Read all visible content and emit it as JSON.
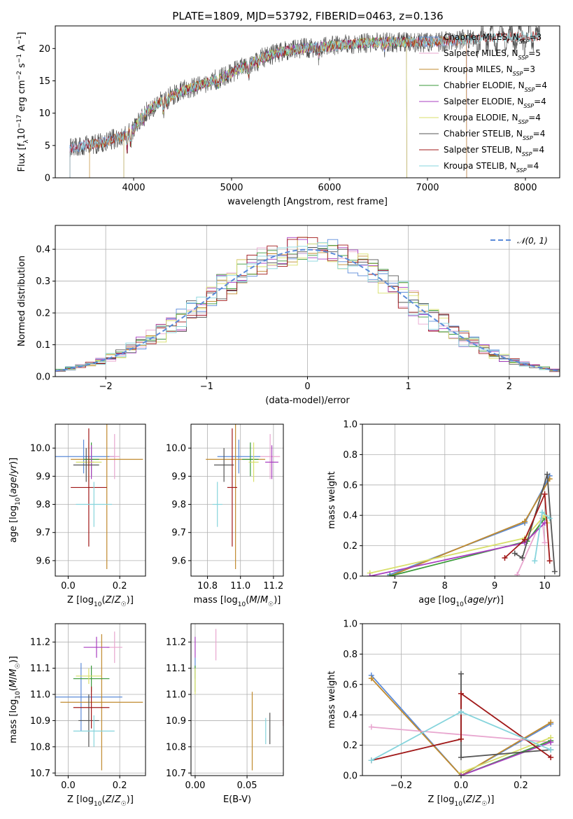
{
  "figure_title": "PLATE=1809, MJD=53792, FIBERID=0463, z=0.136",
  "colors": {
    "Chabrier MILES": "#5b8bd9",
    "Salpeter MILES": "#e8a6cf",
    "Kroupa MILES": "#c08a2e",
    "Chabrier ELODIE": "#3a9a3a",
    "Salpeter ELODIE": "#a93fc0",
    "Kroupa ELODIE": "#d8df6a",
    "Chabrier STELIB": "#555555",
    "Salpeter STELIB": "#a01818",
    "Kroupa STELIB": "#86d4dc",
    "gauss": "#5b8bd9"
  },
  "chart_data": [
    {
      "id": "spectrum",
      "type": "line",
      "xlabel": "wavelength [Angstrom, rest frame]",
      "ylabel": "Flux [f_λ 10^-17 erg cm^-2 s^-1 A^-1]",
      "xlim": [
        3200,
        8350
      ],
      "ylim": [
        0,
        23.5
      ],
      "xticks": [
        4000,
        5000,
        6000,
        7000,
        8000
      ],
      "yticks": [
        0,
        5,
        10,
        15,
        20
      ],
      "grid": false,
      "legend_position": "top-right",
      "legend": [
        {
          "model": "Chabrier MILES",
          "base": "Chabrier MILES, N",
          "n": "3"
        },
        {
          "model": "Salpeter MILES",
          "base": "Salpeter MILES, N",
          "n": "5"
        },
        {
          "model": "Kroupa MILES",
          "base": "Kroupa MILES, N",
          "n": "3"
        },
        {
          "model": "Chabrier ELODIE",
          "base": "Chabrier ELODIE, N",
          "n": "4"
        },
        {
          "model": "Salpeter ELODIE",
          "base": "Salpeter ELODIE, N",
          "n": "4"
        },
        {
          "model": "Kroupa ELODIE",
          "base": "Kroupa ELODIE, N",
          "n": "4"
        },
        {
          "model": "Chabrier STELIB",
          "base": "Chabrier STELIB, N",
          "n": "4"
        },
        {
          "model": "Salpeter STELIB",
          "base": "Salpeter STELIB, N",
          "n": "4"
        },
        {
          "model": "Kroupa STELIB",
          "base": "Kroupa STELIB, N",
          "n": "4"
        }
      ],
      "legend_sub": "SSP",
      "continuum": [
        [
          3350,
          4.5
        ],
        [
          3500,
          5.0
        ],
        [
          3700,
          5.5
        ],
        [
          3900,
          6.5
        ],
        [
          4000,
          7.5
        ],
        [
          4100,
          10.0
        ],
        [
          4300,
          12.0
        ],
        [
          4500,
          13.5
        ],
        [
          4700,
          14.5
        ],
        [
          4900,
          15.5
        ],
        [
          5100,
          17.0
        ],
        [
          5300,
          18.5
        ],
        [
          5500,
          19.5
        ],
        [
          5700,
          20.0
        ],
        [
          5900,
          20.2
        ],
        [
          6100,
          20.5
        ],
        [
          6300,
          20.8
        ],
        [
          6500,
          21.0
        ],
        [
          6700,
          21.0
        ],
        [
          6900,
          21.0
        ],
        [
          7100,
          21.0
        ],
        [
          7300,
          21.3
        ],
        [
          7500,
          21.5
        ],
        [
          7700,
          21.7
        ],
        [
          7900,
          21.8
        ],
        [
          8100,
          21.9
        ]
      ],
      "model_ranges": [
        {
          "model": "Chabrier MILES",
          "xmin": 3350,
          "xmax": 7400
        },
        {
          "model": "Salpeter MILES",
          "xmin": 3350,
          "xmax": 7400
        },
        {
          "model": "Kroupa MILES",
          "xmin": 3550,
          "xmax": 7400
        },
        {
          "model": "Chabrier ELODIE",
          "xmin": 3900,
          "xmax": 6790
        },
        {
          "model": "Salpeter ELODIE",
          "xmin": 3900,
          "xmax": 6790
        },
        {
          "model": "Kroupa ELODIE",
          "xmin": 3900,
          "xmax": 6790
        },
        {
          "model": "Chabrier STELIB",
          "xmin": 3350,
          "xmax": 8150
        },
        {
          "model": "Salpeter STELIB",
          "xmin": 3350,
          "xmax": 8150
        },
        {
          "model": "Kroupa STELIB",
          "xmin": 3350,
          "xmax": 8150
        }
      ]
    },
    {
      "id": "residuals",
      "type": "bar",
      "xlabel": "(data-model)/error",
      "ylabel": "Normed distribution",
      "xlim": [
        -2.5,
        2.5
      ],
      "ylim": [
        0,
        0.475
      ],
      "xticks": [
        -2,
        -1,
        0,
        1,
        2
      ],
      "yticks": [
        0.0,
        0.1,
        0.2,
        0.3,
        0.4
      ],
      "grid": true,
      "bin_width": 0.1,
      "legend_position": "top-right",
      "gauss_label": "𝒩(0, 1)"
    },
    {
      "id": "age-vs-Z",
      "type": "scatter",
      "xlabel": "Z [log10(Z/Z☉)]",
      "ylabel": "age [log10(age/yr)]",
      "xlim": [
        -0.05,
        0.3
      ],
      "ylim": [
        9.545,
        10.085
      ],
      "xticks": [
        0.0,
        0.2
      ],
      "yticks": [
        9.6,
        9.7,
        9.8,
        9.9,
        10.0
      ],
      "grid": true,
      "points": [
        {
          "model": "Chabrier MILES",
          "x": 0.06,
          "y": 9.97,
          "xerr": 0.12,
          "yerr": 0.06
        },
        {
          "model": "Salpeter MILES",
          "x": 0.18,
          "y": 9.97,
          "xerr": 0.02,
          "yerr": 0.08
        },
        {
          "model": "Kroupa MILES",
          "x": 0.15,
          "y": 9.96,
          "xerr": 0.14,
          "yerr": 0.39
        },
        {
          "model": "Chabrier ELODIE",
          "x": 0.09,
          "y": 9.96,
          "xerr": 0.03,
          "yerr": 0.06
        },
        {
          "model": "Salpeter ELODIE",
          "x": 0.09,
          "y": 9.95,
          "xerr": 0.01,
          "yerr": 0.06
        },
        {
          "model": "Kroupa ELODIE",
          "x": 0.08,
          "y": 9.95,
          "xerr": 0.05,
          "yerr": 0.07
        },
        {
          "model": "Chabrier STELIB",
          "x": 0.07,
          "y": 9.94,
          "xerr": 0.05,
          "yerr": 0.06
        },
        {
          "model": "Salpeter STELIB",
          "x": 0.08,
          "y": 9.86,
          "xerr": 0.07,
          "yerr": 0.21
        },
        {
          "model": "Kroupa STELIB",
          "x": 0.1,
          "y": 9.8,
          "xerr": 0.07,
          "yerr": 0.08
        }
      ]
    },
    {
      "id": "age-vs-mass",
      "type": "scatter",
      "xlabel": "mass [log10(M/M☉)]",
      "ylabel": "",
      "xlim": [
        10.7,
        11.26
      ],
      "ylim": [
        9.545,
        10.085
      ],
      "xticks": [
        10.8,
        11.0,
        11.2
      ],
      "yticks": [
        9.6,
        9.7,
        9.8,
        9.9,
        10.0
      ],
      "grid": true,
      "points": [
        {
          "model": "Chabrier MILES",
          "x": 10.99,
          "y": 9.97,
          "xerr": 0.13,
          "yerr": 0.06
        },
        {
          "model": "Salpeter MILES",
          "x": 11.18,
          "y": 9.97,
          "xerr": 0.06,
          "yerr": 0.08
        },
        {
          "model": "Kroupa MILES",
          "x": 10.97,
          "y": 9.96,
          "xerr": 0.18,
          "yerr": 0.39
        },
        {
          "model": "Chabrier ELODIE",
          "x": 11.06,
          "y": 9.96,
          "xerr": 0.05,
          "yerr": 0.06
        },
        {
          "model": "Salpeter ELODIE",
          "x": 11.19,
          "y": 9.95,
          "xerr": 0.04,
          "yerr": 0.06
        },
        {
          "model": "Kroupa ELODIE",
          "x": 11.08,
          "y": 9.95,
          "xerr": 0.03,
          "yerr": 0.07
        },
        {
          "model": "Chabrier STELIB",
          "x": 10.9,
          "y": 9.94,
          "xerr": 0.06,
          "yerr": 0.06
        },
        {
          "model": "Salpeter STELIB",
          "x": 10.95,
          "y": 9.86,
          "xerr": 0.03,
          "yerr": 0.21
        },
        {
          "model": "Kroupa STELIB",
          "x": 10.86,
          "y": 9.8,
          "xerr": 0.03,
          "yerr": 0.08
        }
      ]
    },
    {
      "id": "weight-vs-age",
      "type": "line",
      "xlabel": "age [log10(age/yr)]",
      "ylabel": "mass weight",
      "xlim": [
        6.35,
        10.3
      ],
      "ylim": [
        0,
        1.0
      ],
      "xticks": [
        7,
        8,
        9,
        10
      ],
      "yticks": [
        0.0,
        0.2,
        0.4,
        0.6,
        0.8,
        1.0
      ],
      "grid": true,
      "series": [
        {
          "model": "Chabrier MILES",
          "points": [
            [
              6.9,
              0.01
            ],
            [
              9.6,
              0.35
            ],
            [
              10.1,
              0.66
            ]
          ]
        },
        {
          "model": "Kroupa MILES",
          "points": [
            [
              6.9,
              0.0
            ],
            [
              9.6,
              0.36
            ],
            [
              10.1,
              0.64
            ]
          ]
        },
        {
          "model": "Salpeter MILES",
          "points": [
            [
              9.45,
              0.01
            ],
            [
              9.95,
              0.38
            ],
            [
              10.0,
              0.22
            ]
          ]
        },
        {
          "model": "Chabrier ELODIE",
          "points": [
            [
              6.9,
              0.0
            ],
            [
              9.65,
              0.23
            ],
            [
              10.0,
              0.38
            ]
          ]
        },
        {
          "model": "Kroupa ELODIE",
          "points": [
            [
              6.5,
              0.02
            ],
            [
              9.6,
              0.25
            ],
            [
              10.0,
              0.4
            ],
            [
              10.05,
              0.35
            ]
          ]
        },
        {
          "model": "Salpeter ELODIE",
          "points": [
            [
              6.5,
              0.0
            ],
            [
              9.6,
              0.22
            ],
            [
              10.0,
              0.35
            ]
          ]
        },
        {
          "model": "Chabrier STELIB",
          "points": [
            [
              9.4,
              0.15
            ],
            [
              9.55,
              0.12
            ],
            [
              10.05,
              0.67
            ],
            [
              10.2,
              0.03
            ]
          ]
        },
        {
          "model": "Salpeter STELIB",
          "points": [
            [
              9.2,
              0.12
            ],
            [
              9.6,
              0.24
            ],
            [
              10.0,
              0.54
            ],
            [
              10.1,
              0.1
            ]
          ]
        },
        {
          "model": "Kroupa STELIB",
          "points": [
            [
              9.8,
              0.1
            ],
            [
              9.95,
              0.42
            ],
            [
              10.1,
              0.38
            ]
          ]
        }
      ]
    },
    {
      "id": "mass-vs-Z",
      "type": "scatter",
      "xlabel": "Z [log10(Z/Z☉)]",
      "ylabel": "mass [log10(M/M☉)]",
      "xlim": [
        -0.05,
        0.3
      ],
      "ylim": [
        10.69,
        11.27
      ],
      "xticks": [
        0.0,
        0.2
      ],
      "yticks": [
        10.7,
        10.8,
        10.9,
        11.0,
        11.1,
        11.2
      ],
      "grid": true,
      "points": [
        {
          "model": "Chabrier MILES",
          "x": 0.05,
          "y": 10.99,
          "xerr": 0.16,
          "yerr": 0.13
        },
        {
          "model": "Salpeter MILES",
          "x": 0.18,
          "y": 11.18,
          "xerr": 0.03,
          "yerr": 0.06
        },
        {
          "model": "Kroupa MILES",
          "x": 0.13,
          "y": 10.97,
          "xerr": 0.16,
          "yerr": 0.26
        },
        {
          "model": "Chabrier ELODIE",
          "x": 0.09,
          "y": 11.06,
          "xerr": 0.07,
          "yerr": 0.05
        },
        {
          "model": "Salpeter ELODIE",
          "x": 0.11,
          "y": 11.18,
          "xerr": 0.05,
          "yerr": 0.04
        },
        {
          "model": "Kroupa ELODIE",
          "x": 0.08,
          "y": 11.07,
          "xerr": 0.05,
          "yerr": 0.03
        },
        {
          "model": "Chabrier STELIB",
          "x": 0.08,
          "y": 10.9,
          "xerr": 0.04,
          "yerr": 0.1
        },
        {
          "model": "Salpeter STELIB",
          "x": 0.09,
          "y": 10.95,
          "xerr": 0.07,
          "yerr": 0.08
        },
        {
          "model": "Kroupa STELIB",
          "x": 0.1,
          "y": 10.86,
          "xerr": 0.08,
          "yerr": 0.06
        }
      ]
    },
    {
      "id": "mass-vs-EBV",
      "type": "scatter",
      "xlabel": "E(B-V)",
      "ylabel": "",
      "xlim": [
        -0.004,
        0.085
      ],
      "ylim": [
        10.69,
        11.27
      ],
      "xticks": [
        0.0,
        0.05
      ],
      "yticks": [
        10.7,
        10.8,
        10.9,
        11.0,
        11.1,
        11.2
      ],
      "grid": true,
      "points": [
        {
          "model": "Chabrier MILES",
          "x": 0.0,
          "y": 11.1,
          "xerr": 0.0,
          "yerr": 0.04
        },
        {
          "model": "Salpeter MILES",
          "x": 0.02,
          "y": 11.19,
          "xerr": 0.0,
          "yerr": 0.06
        },
        {
          "model": "Kroupa MILES",
          "x": 0.055,
          "y": 10.86,
          "xerr": 0.0,
          "yerr": 0.15
        },
        {
          "model": "Chabrier ELODIE",
          "x": 0.0,
          "y": 11.06,
          "xerr": 0.0,
          "yerr": 0.05
        },
        {
          "model": "Salpeter ELODIE",
          "x": 0.0,
          "y": 11.18,
          "xerr": 0.0,
          "yerr": 0.04
        },
        {
          "model": "Kroupa ELODIE",
          "x": 0.0,
          "y": 11.05,
          "xerr": 0.0,
          "yerr": 0.05
        },
        {
          "model": "Chabrier STELIB",
          "x": 0.072,
          "y": 10.87,
          "xerr": 0.0,
          "yerr": 0.06
        },
        {
          "model": "Salpeter STELIB",
          "x": 0.085,
          "y": 10.93,
          "xerr": 0.0,
          "yerr": 0.05
        },
        {
          "model": "Kroupa STELIB",
          "x": 0.068,
          "y": 10.86,
          "xerr": 0.0,
          "yerr": 0.05
        }
      ]
    },
    {
      "id": "weight-vs-Z",
      "type": "line",
      "xlabel": "Z [log10(Z/Z☉)]",
      "ylabel": "mass weight",
      "xlim": [
        -0.33,
        0.33
      ],
      "ylim": [
        0,
        1.0
      ],
      "xticks": [
        -0.2,
        0.0,
        0.2
      ],
      "yticks": [
        0.0,
        0.2,
        0.4,
        0.6,
        0.8,
        1.0
      ],
      "grid": true,
      "series": [
        {
          "model": "Chabrier MILES",
          "points": [
            [
              -0.3,
              0.66
            ],
            [
              0.0,
              0.0
            ],
            [
              0.3,
              0.34
            ]
          ]
        },
        {
          "model": "Kroupa MILES",
          "points": [
            [
              -0.3,
              0.64
            ],
            [
              0.0,
              0.0
            ],
            [
              0.3,
              0.35
            ]
          ]
        },
        {
          "model": "Salpeter MILES",
          "points": [
            [
              -0.3,
              0.32
            ],
            [
              0.3,
              0.22
            ]
          ]
        },
        {
          "model": "Chabrier ELODIE",
          "points": [
            [
              0.0,
              0.0
            ],
            [
              0.3,
              0.23
            ]
          ]
        },
        {
          "model": "Kroupa ELODIE",
          "points": [
            [
              0.0,
              0.02
            ],
            [
              0.3,
              0.25
            ]
          ]
        },
        {
          "model": "Salpeter ELODIE",
          "points": [
            [
              0.0,
              0.0
            ],
            [
              0.3,
              0.22
            ]
          ]
        },
        {
          "model": "Chabrier STELIB",
          "points": [
            [
              0.0,
              0.67
            ],
            [
              0.0,
              0.12
            ],
            [
              0.3,
              0.17
            ]
          ]
        },
        {
          "model": "Salpeter STELIB",
          "points": [
            [
              -0.3,
              0.1
            ],
            [
              0.0,
              0.24
            ],
            [
              0.0,
              0.54
            ],
            [
              0.3,
              0.12
            ]
          ]
        },
        {
          "model": "Kroupa STELIB",
          "points": [
            [
              -0.3,
              0.1
            ],
            [
              0.0,
              0.42
            ],
            [
              0.3,
              0.17
            ]
          ]
        }
      ]
    }
  ]
}
